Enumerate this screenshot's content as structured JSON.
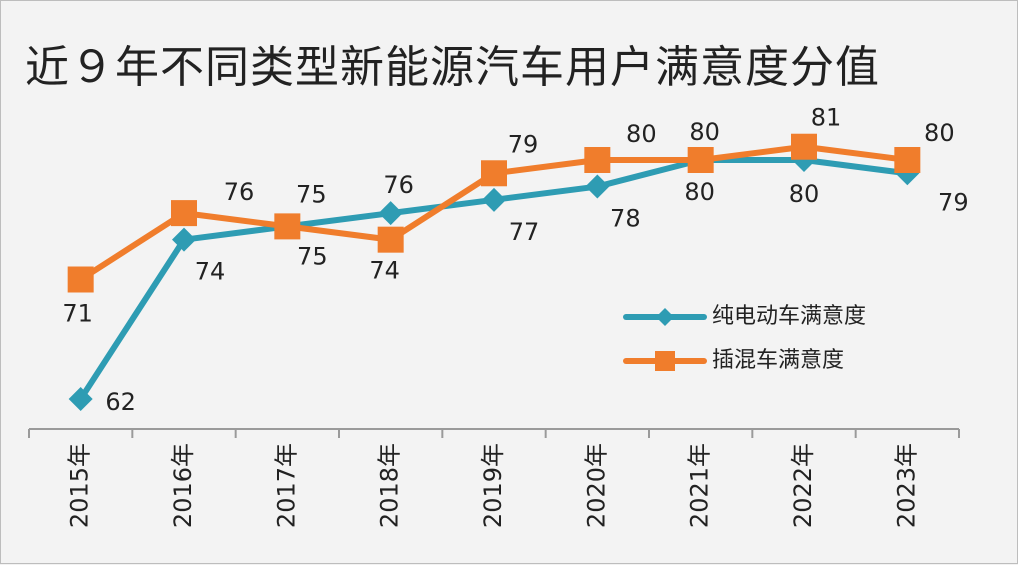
{
  "chart_data": {
    "type": "line",
    "title": "近９年不同类型新能源汽车用户满意度分值",
    "categories": [
      "2015年",
      "2016年",
      "2017年",
      "2018年",
      "2019年",
      "2020年",
      "2021年",
      "2022年",
      "2023年"
    ],
    "series": [
      {
        "name": "纯电动车满意度",
        "color": "#2e9cb3",
        "marker": "diamond",
        "values": [
          62,
          74,
          75,
          76,
          77,
          78,
          80,
          80,
          79
        ]
      },
      {
        "name": "插混车满意度",
        "color": "#f07d2c",
        "marker": "square",
        "values": [
          71,
          76,
          75,
          74,
          79,
          80,
          80,
          81,
          80
        ]
      }
    ],
    "data_labels": true,
    "legend": "right",
    "grid": false,
    "ylim": [
      60,
      84
    ]
  }
}
